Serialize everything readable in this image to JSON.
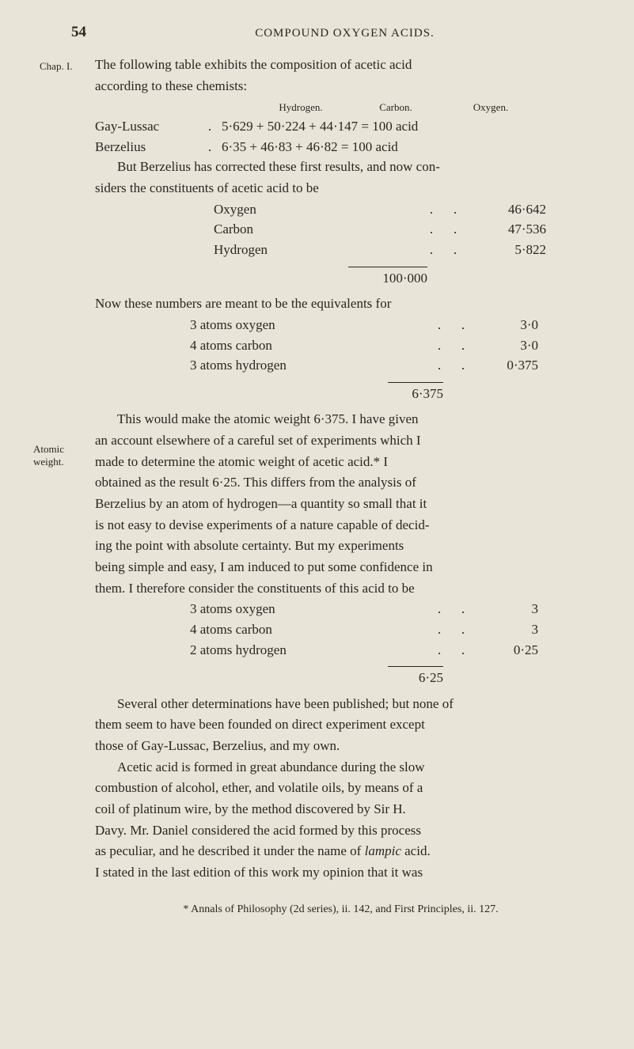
{
  "page_number": "54",
  "running_title": "COMPOUND OXYGEN ACIDS.",
  "chapter_label": "Chap. I.",
  "margin_notes": {
    "atomic_weight": "Atomic weight."
  },
  "typography": {
    "body_fontsize": 17,
    "small_fontsize": 13,
    "text_color": "#2a2620",
    "background_color": "#e8e4d8"
  },
  "intro": {
    "line1": "The following table exhibits the composition of acetic acid",
    "line2": "according to these chemists:"
  },
  "col_heads": {
    "h1": "Hydrogen.",
    "h2": "Carbon.",
    "h3": "Oxygen."
  },
  "equations": [
    {
      "name": "Gay-Lussac",
      "dot": ".",
      "expr": "5·629 + 50·224 + 44·147 = 100 acid"
    },
    {
      "name": "Berzelius",
      "dot": ".",
      "expr": "6·35  + 46·83  + 46·82  = 100 acid"
    }
  ],
  "but_line1": "But Berzelius has corrected these first results, and now con-",
  "but_line2": "siders the constituents of acetic acid to be",
  "constituents": [
    {
      "label": "Oxygen",
      "d1": ".",
      "d2": ".",
      "val": "46·642"
    },
    {
      "label": "Carbon",
      "d1": ".",
      "d2": ".",
      "val": "47·536"
    },
    {
      "label": "Hydrogen",
      "d1": ".",
      "d2": ".",
      "val": "5·822"
    }
  ],
  "constituents_total": "100·000",
  "equiv_line": "Now these numbers are meant to be the equivalents for",
  "equiv_atoms": [
    {
      "label": "3 atoms oxygen",
      "d1": ".",
      "d2": ".",
      "val": "3·0"
    },
    {
      "label": "4 atoms carbon",
      "d1": ".",
      "d2": ".",
      "val": "3·0"
    },
    {
      "label": "3 atoms hydrogen",
      "d1": ".",
      "d2": ".",
      "val": "0·375"
    }
  ],
  "equiv_total": "6·375",
  "body_para1_lines": [
    "This would make the atomic weight 6·375. I have given",
    "an account elsewhere of a careful set of experiments which I",
    "made to determine the atomic weight of acetic acid.* I",
    "obtained as the result 6·25. This differs from the analysis of",
    "Berzelius by an atom of hydrogen—a quantity so small that it",
    "is not easy to devise experiments of a nature capable of decid-",
    "ing the point with absolute certainty. But my experiments",
    "being simple and easy, I am induced to put some confidence in",
    "them. I therefore consider the constituents of this acid to be"
  ],
  "atoms2": [
    {
      "label": "3 atoms oxygen",
      "d1": ".",
      "d2": ".",
      "val": "3"
    },
    {
      "label": "4 atoms carbon",
      "d1": ".",
      "d2": ".",
      "val": "3"
    },
    {
      "label": "2 atoms hydrogen",
      "d1": ".",
      "d2": ".",
      "val": "0·25"
    }
  ],
  "atoms2_total": "6·25",
  "body_para2_lines": [
    "Several other determinations have been published; but none of",
    "them seem to have been founded on direct experiment except",
    "those of Gay-Lussac, Berzelius, and my own."
  ],
  "body_para3_lines": [
    "Acetic acid is formed in great abundance during the slow",
    "combustion of alcohol, ether, and volatile oils, by means of a",
    "coil of platinum wire, by the method discovered by Sir H.",
    "Davy. Mr. Daniel considered the acid formed by this process",
    "as peculiar, and he described it under the name of ",
    " acid.",
    "I stated in the last edition of this work my opinion that it was"
  ],
  "lampic_word": "lampic",
  "footnote": "* Annals of Philosophy (2d series), ii. 142, and First Principles, ii. 127."
}
